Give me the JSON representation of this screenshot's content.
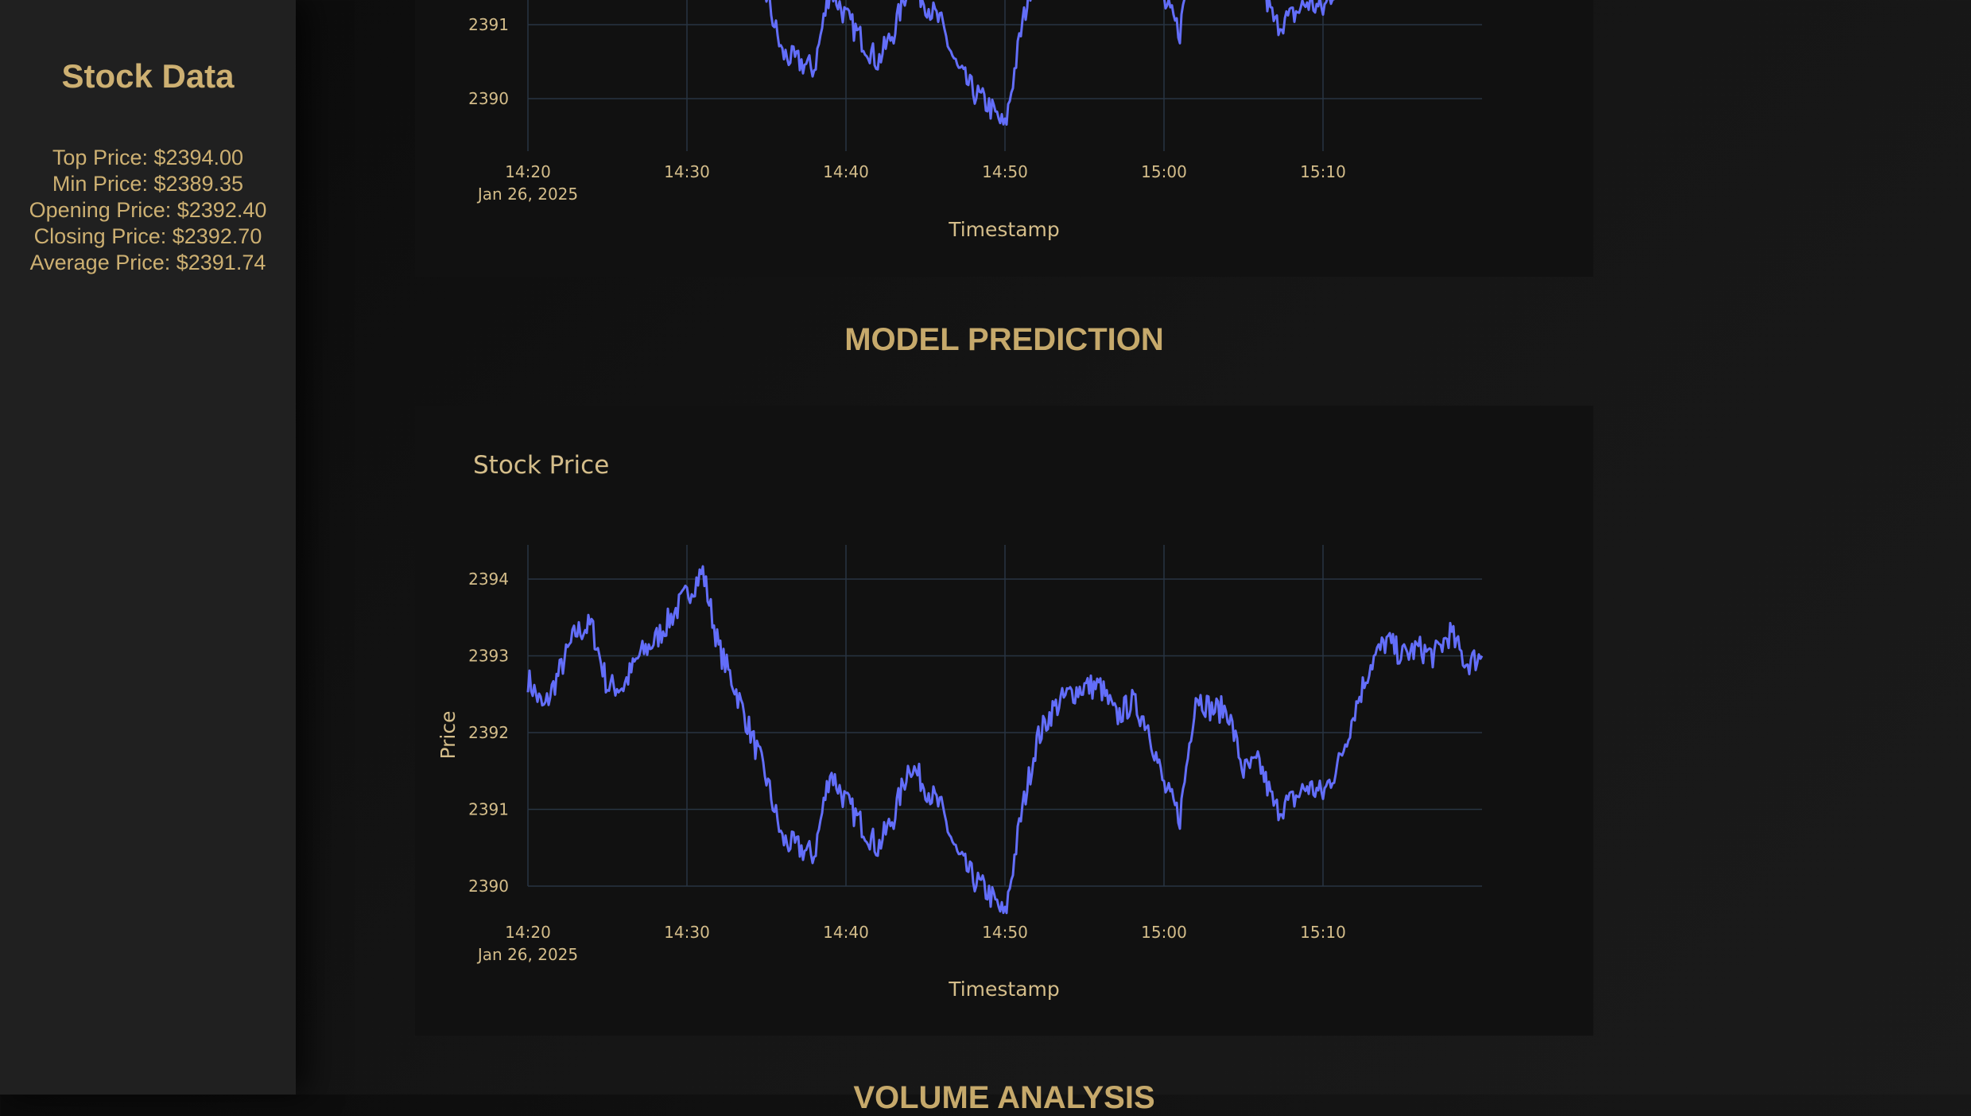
{
  "sidebar": {
    "title": "Stock Data",
    "stats": {
      "top": "Top Price: $2394.00",
      "min": "Min Price: $2389.35",
      "open": "Opening Price: $2392.40",
      "close": "Closing Price: $2392.70",
      "avg": "Average Price: $2391.74"
    }
  },
  "sections": {
    "model_prediction": "MODEL PREDICTION",
    "volume_analysis": "VOLUME ANALYSIS"
  },
  "colors": {
    "accent": "#cdb072",
    "line": "#636efa",
    "grid": "#283442",
    "panel": "#111111",
    "sidebar": "#202020"
  },
  "chart_data": [
    {
      "type": "line",
      "title": "",
      "xlabel": "Timestamp",
      "ylabel": "",
      "date_label": "Jan 26, 2025",
      "x_ticks": [
        "14:20",
        "14:30",
        "14:40",
        "14:50",
        "15:00",
        "15:10"
      ],
      "y_ticks": [
        "2390",
        "2391"
      ],
      "ylim": [
        2389.35,
        2394.2
      ],
      "grid": true,
      "series": [
        {
          "x": [
            "14:20",
            "14:21",
            "14:22",
            "14:23",
            "14:24",
            "14:25",
            "14:26",
            "14:27",
            "14:28",
            "14:29",
            "14:30",
            "14:31",
            "14:32",
            "14:33",
            "14:34",
            "14:35",
            "14:36",
            "14:37",
            "14:38",
            "14:39",
            "14:40",
            "14:41",
            "14:42",
            "14:43",
            "14:44",
            "14:45",
            "14:46",
            "14:47",
            "14:48",
            "14:49",
            "14:50",
            "14:51",
            "14:52",
            "14:53",
            "14:54",
            "14:55",
            "14:56",
            "14:57",
            "14:58",
            "14:59",
            "15:00",
            "15:01",
            "15:02",
            "15:03",
            "15:04",
            "15:05",
            "15:06",
            "15:07",
            "15:08",
            "15:09",
            "15:10",
            "15:11",
            "15:12",
            "15:13",
            "15:14",
            "15:15",
            "15:16",
            "15:17",
            "15:18",
            "15:19",
            "15:20"
          ],
          "y": [
            2392.7,
            2392.3,
            2392.8,
            2393.3,
            2393.4,
            2392.6,
            2392.6,
            2393.0,
            2393.2,
            2393.5,
            2393.8,
            2394.1,
            2393.1,
            2392.6,
            2392.0,
            2391.4,
            2390.6,
            2390.5,
            2390.4,
            2391.5,
            2391.1,
            2390.8,
            2390.5,
            2390.9,
            2391.6,
            2391.3,
            2391.0,
            2390.4,
            2390.1,
            2389.9,
            2389.6,
            2390.9,
            2391.9,
            2392.3,
            2392.5,
            2392.6,
            2392.6,
            2392.2,
            2392.4,
            2392.1,
            2391.3,
            2390.9,
            2392.5,
            2392.3,
            2392.3,
            2391.5,
            2391.6,
            2391.0,
            2391.1,
            2391.3,
            2391.2,
            2391.6,
            2392.3,
            2392.9,
            2393.2,
            2393.0,
            2393.1,
            2393.0,
            2393.3,
            2392.9,
            2393.0
          ],
          "visible_y_range": [
            2389.35,
            2391.35
          ]
        }
      ]
    },
    {
      "type": "line",
      "title": "Stock Price",
      "xlabel": "Timestamp",
      "ylabel": "Price",
      "date_label": "Jan 26, 2025",
      "x_ticks": [
        "14:20",
        "14:30",
        "14:40",
        "14:50",
        "15:00",
        "15:10"
      ],
      "y_ticks": [
        "2390",
        "2391",
        "2392",
        "2393",
        "2394"
      ],
      "ylim": [
        2389.6,
        2394.4
      ],
      "grid": true,
      "series": [
        {
          "x": [
            "14:20",
            "14:21",
            "14:22",
            "14:23",
            "14:24",
            "14:25",
            "14:26",
            "14:27",
            "14:28",
            "14:29",
            "14:30",
            "14:31",
            "14:32",
            "14:33",
            "14:34",
            "14:35",
            "14:36",
            "14:37",
            "14:38",
            "14:39",
            "14:40",
            "14:41",
            "14:42",
            "14:43",
            "14:44",
            "14:45",
            "14:46",
            "14:47",
            "14:48",
            "14:49",
            "14:50",
            "14:51",
            "14:52",
            "14:53",
            "14:54",
            "14:55",
            "14:56",
            "14:57",
            "14:58",
            "14:59",
            "15:00",
            "15:01",
            "15:02",
            "15:03",
            "15:04",
            "15:05",
            "15:06",
            "15:07",
            "15:08",
            "15:09",
            "15:10",
            "15:11",
            "15:12",
            "15:13",
            "15:14",
            "15:15",
            "15:16",
            "15:17",
            "15:18",
            "15:19",
            "15:20"
          ],
          "y": [
            2392.7,
            2392.3,
            2392.8,
            2393.3,
            2393.4,
            2392.6,
            2392.6,
            2393.0,
            2393.2,
            2393.5,
            2393.8,
            2394.1,
            2393.1,
            2392.6,
            2392.0,
            2391.4,
            2390.6,
            2390.5,
            2390.4,
            2391.5,
            2391.1,
            2390.8,
            2390.5,
            2390.9,
            2391.6,
            2391.3,
            2391.0,
            2390.4,
            2390.1,
            2389.9,
            2389.6,
            2390.9,
            2391.9,
            2392.3,
            2392.5,
            2392.6,
            2392.6,
            2392.2,
            2392.4,
            2392.1,
            2391.3,
            2390.9,
            2392.5,
            2392.3,
            2392.3,
            2391.5,
            2391.6,
            2391.0,
            2391.1,
            2391.3,
            2391.2,
            2391.6,
            2392.3,
            2392.9,
            2393.2,
            2393.0,
            2393.1,
            2393.0,
            2393.3,
            2392.9,
            2393.0
          ]
        }
      ]
    }
  ]
}
